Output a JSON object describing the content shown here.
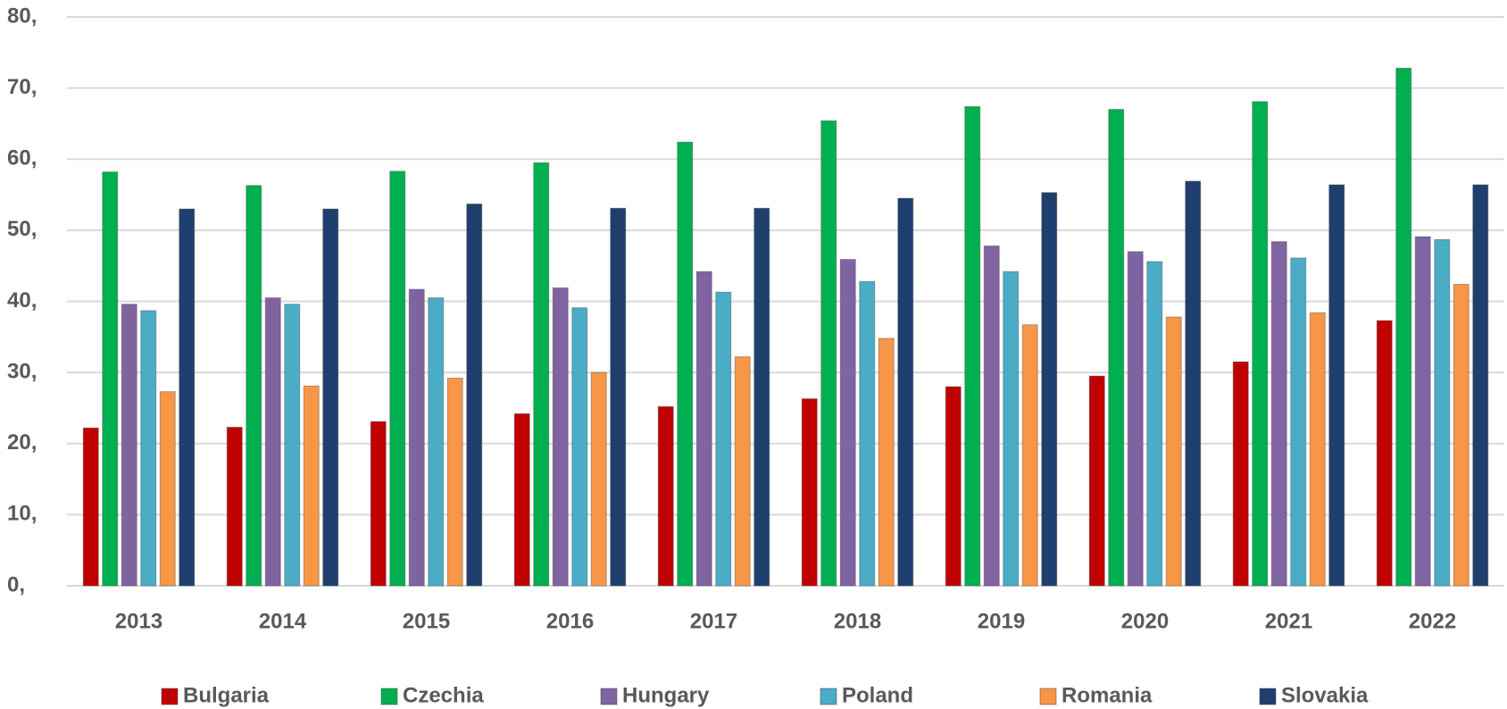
{
  "chart_data": {
    "type": "bar",
    "categories": [
      "2013",
      "2014",
      "2015",
      "2016",
      "2017",
      "2018",
      "2019",
      "2020",
      "2021",
      "2022"
    ],
    "series": [
      {
        "name": "Bulgaria",
        "color": "#c00000",
        "values": [
          22.2,
          22.3,
          23.1,
          24.2,
          25.2,
          26.3,
          28.0,
          29.5,
          31.5,
          37.3
        ]
      },
      {
        "name": "Czechia",
        "color": "#00b050",
        "values": [
          58.2,
          56.3,
          58.3,
          59.5,
          62.4,
          65.4,
          67.4,
          67.0,
          68.1,
          72.8
        ]
      },
      {
        "name": "Hungary",
        "color": "#8064a2",
        "values": [
          39.6,
          40.5,
          41.7,
          41.9,
          44.2,
          45.9,
          47.8,
          47.0,
          48.4,
          49.1
        ]
      },
      {
        "name": "Poland",
        "color": "#4bacc6",
        "values": [
          38.7,
          39.6,
          40.5,
          39.1,
          41.3,
          42.8,
          44.2,
          45.6,
          46.1,
          48.7
        ]
      },
      {
        "name": "Romania",
        "color": "#f79646",
        "values": [
          27.3,
          28.1,
          29.2,
          30.0,
          32.2,
          34.8,
          36.7,
          37.8,
          38.4,
          42.4
        ]
      },
      {
        "name": "Slovakia",
        "color": "#1f3f6e",
        "values": [
          53.0,
          53.0,
          53.7,
          53.1,
          53.1,
          54.5,
          55.3,
          56.9,
          56.4,
          56.4
        ]
      }
    ],
    "ylim": [
      0,
      80
    ],
    "yticks": [
      {
        "value": 0,
        "label": "0,"
      },
      {
        "value": 10,
        "label": "10,"
      },
      {
        "value": 20,
        "label": "20,"
      },
      {
        "value": 30,
        "label": "30,"
      },
      {
        "value": 40,
        "label": "40,"
      },
      {
        "value": 50,
        "label": "50,"
      },
      {
        "value": 60,
        "label": "60,"
      },
      {
        "value": 70,
        "label": "70,"
      },
      {
        "value": 80,
        "label": "80,"
      }
    ],
    "grid": true,
    "legend": "bottom"
  }
}
